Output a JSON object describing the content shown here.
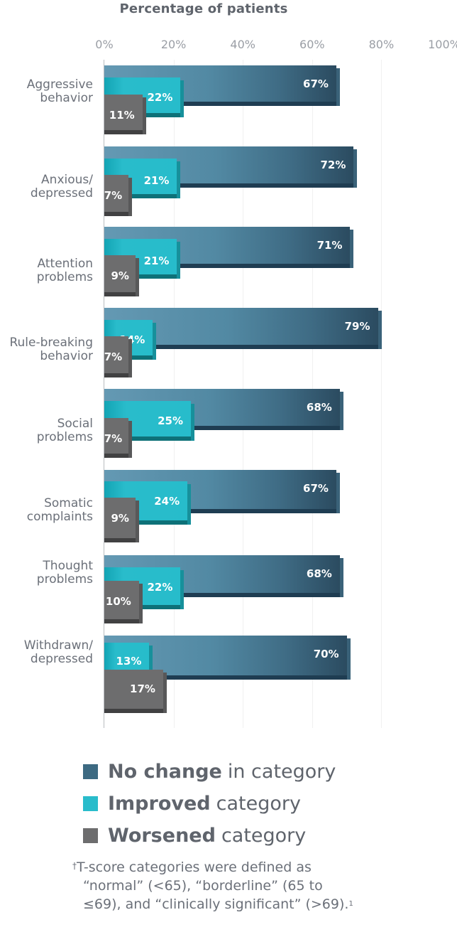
{
  "chart_data": {
    "type": "bar",
    "orientation": "horizontal",
    "title": "Percentage of patients",
    "xlabel": "Percentage of patients",
    "ylabel": "",
    "xlim": [
      0,
      100
    ],
    "x_ticks": [
      "0%",
      "20%",
      "40%",
      "60%",
      "80%",
      "100%"
    ],
    "x_tick_values": [
      0,
      20,
      40,
      60,
      80,
      100
    ],
    "grid": true,
    "categories": [
      [
        "Aggressive",
        "behavior"
      ],
      [
        "Anxious/",
        "depressed"
      ],
      [
        "Attention",
        "problems"
      ],
      [
        "Rule-breaking",
        "behavior"
      ],
      [
        "Social",
        "problems"
      ],
      [
        "Somatic",
        "complaints"
      ],
      [
        "Thought",
        "problems"
      ],
      [
        "Withdrawn/",
        "depressed"
      ]
    ],
    "series": [
      {
        "key": "nochange",
        "name": "No change in category",
        "color": "#3d6a82",
        "values": [
          67,
          72,
          71,
          79,
          68,
          67,
          68,
          70
        ]
      },
      {
        "key": "improved",
        "name": "Improved category",
        "color": "#29bccb",
        "values": [
          22,
          21,
          21,
          14,
          25,
          24,
          22,
          13
        ]
      },
      {
        "key": "worsened",
        "name": "Worsened category",
        "color": "#6d6d6e",
        "values": [
          11,
          7,
          9,
          7,
          7,
          9,
          10,
          17
        ]
      }
    ],
    "value_suffix": "%",
    "legend_position": "bottom",
    "legend": [
      {
        "bold": "No change",
        "rest": "in category",
        "color": "#3d6a82"
      },
      {
        "bold": "Improved",
        "rest": "category",
        "color": "#29bccb"
      },
      {
        "bold": "Worsened",
        "rest": "category",
        "color": "#6d6d6e"
      }
    ]
  },
  "footnote": {
    "dagger": "†",
    "lines": [
      "T-score categories were defined as",
      "“normal” (<65), “borderline” (65 to",
      "≤69), and “clinically significant” (>69)."
    ],
    "ref": "1"
  }
}
